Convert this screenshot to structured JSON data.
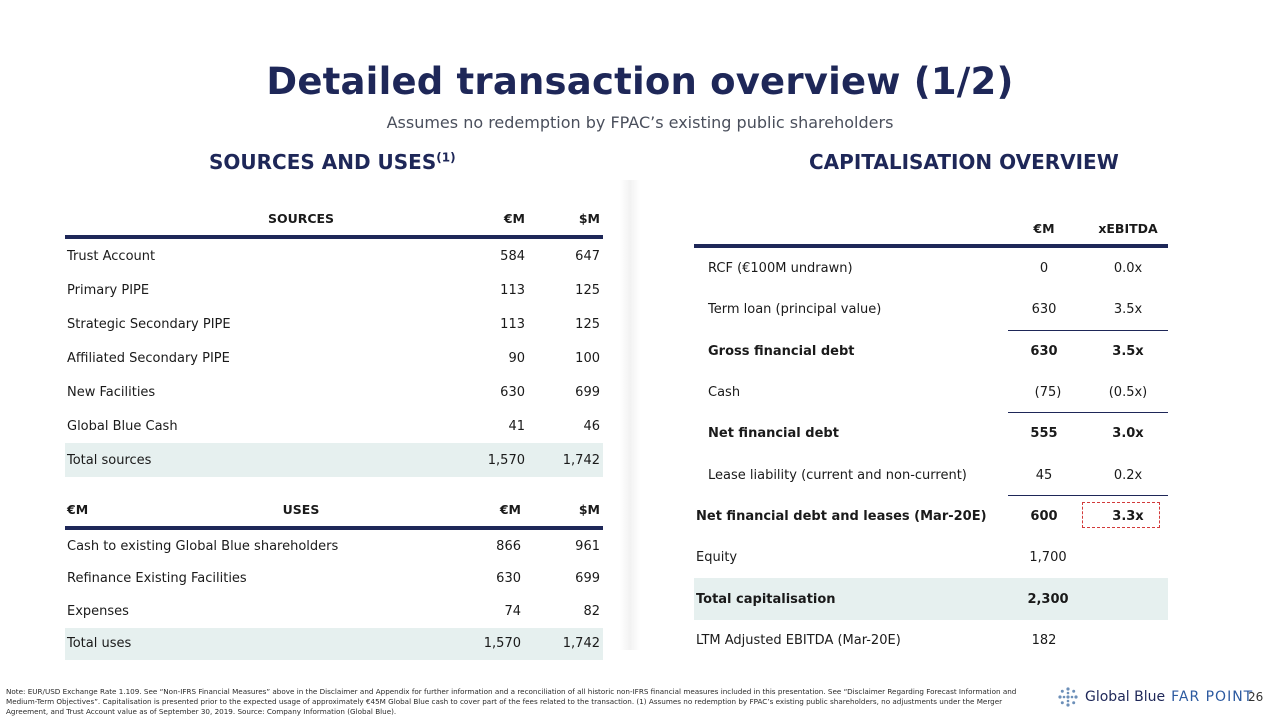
{
  "title": "Detailed transaction overview (1/2)",
  "subtitle": "Assumes no redemption by FPAC’s existing public shareholders",
  "sections": {
    "sources_uses_title": "SOURCES AND USES",
    "sources_uses_sup": "(1)",
    "cap_title": "CAPITALISATION OVERVIEW"
  },
  "sources": {
    "headers": {
      "label": "SOURCES",
      "eur": "€M",
      "usd": "$M"
    },
    "rows": [
      {
        "label": "Trust Account",
        "eur": "584",
        "usd": "647"
      },
      {
        "label": "Primary PIPE",
        "eur": "113",
        "usd": "125"
      },
      {
        "label": "Strategic Secondary PIPE",
        "eur": "113",
        "usd": "125"
      },
      {
        "label": "Affiliated Secondary PIPE",
        "eur": "90",
        "usd": "100"
      },
      {
        "label": "New Facilities",
        "eur": "630",
        "usd": "699"
      },
      {
        "label": "Global Blue Cash",
        "eur": "41",
        "usd": "46"
      }
    ],
    "total": {
      "label": "Total sources",
      "eur": "1,570",
      "usd": "1,742"
    }
  },
  "uses": {
    "headers": {
      "unit": "€M",
      "label": "USES",
      "eur": "€M",
      "usd": "$M"
    },
    "rows": [
      {
        "label": "Cash to existing Global Blue shareholders",
        "eur": "866",
        "usd": "961"
      },
      {
        "label": "Refinance Existing Facilities",
        "eur": "630",
        "usd": "699"
      },
      {
        "label": "Expenses",
        "eur": "74",
        "usd": "82"
      }
    ],
    "total": {
      "label": "Total uses",
      "eur": "1,570",
      "usd": "1,742"
    }
  },
  "capitalisation": {
    "headers": {
      "eur": "€M",
      "multiple": "xEBITDA"
    },
    "rows": [
      {
        "label": "RCF (€100M undrawn)",
        "eur": "0",
        "multiple": "0.0x"
      },
      {
        "label": "Term loan (principal value)",
        "eur": "630",
        "multiple": "3.5x"
      },
      {
        "label": "Gross financial debt",
        "eur": "630",
        "multiple": "3.5x"
      },
      {
        "label": "Cash",
        "eur": "(75)",
        "multiple": "(0.5x)"
      },
      {
        "label": "Net financial debt",
        "eur": "555",
        "multiple": "3.0x"
      },
      {
        "label": "Lease liability (current and non-current)",
        "eur": "45",
        "multiple": "0.2x"
      },
      {
        "label": "Net financial debt and leases (Mar-20E)",
        "eur": "600",
        "multiple": "3.3x"
      },
      {
        "label": "Equity",
        "eur": "1,700",
        "multiple": ""
      },
      {
        "label": "Total capitalisation",
        "eur": "2,300",
        "multiple": ""
      },
      {
        "label": "LTM Adjusted EBITDA (Mar-20E)",
        "eur": "182",
        "multiple": ""
      }
    ]
  },
  "footnote": "Note: EUR/USD Exchange Rate 1.109. See “Non-IFRS Financial Measures” above in the Disclaimer and Appendix for further information and a reconciliation of all historic non-IFRS financial measures included in this presentation. See “Disclaimer Regarding Forecast Information and Medium-Term Objectives”. Capitalisation is presented prior to the expected usage of approximately €45M Global Blue cash to cover part of the fees related to the transaction. (1) Assumes no redemption by FPAC’s existing public shareholders, no adjustments under the Merger Agreement, and Trust Account value as of September 30, 2019. Source: Company Information (Global Blue).",
  "logo": {
    "brand": "Global Blue",
    "partner": "FAR POINT"
  },
  "page_number": "26",
  "colors": {
    "navy": "#1e2758",
    "shade": "#e6f0ef",
    "highlight": "#d23a3a"
  }
}
